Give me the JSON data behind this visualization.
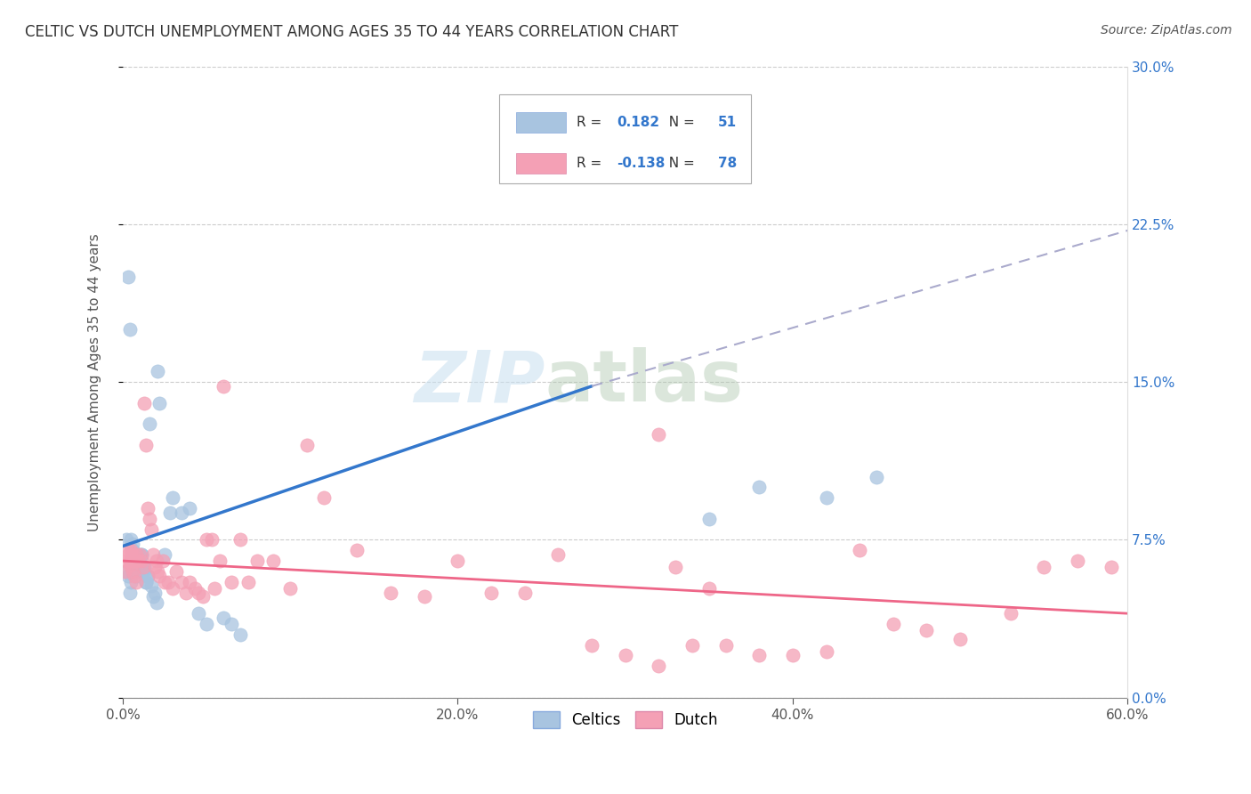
{
  "title": "CELTIC VS DUTCH UNEMPLOYMENT AMONG AGES 35 TO 44 YEARS CORRELATION CHART",
  "source": "Source: ZipAtlas.com",
  "ylabel_label": "Unemployment Among Ages 35 to 44 years",
  "legend_label1": "Celtics",
  "legend_label2": "Dutch",
  "r1": "0.182",
  "n1": "51",
  "r2": "-0.138",
  "n2": "78",
  "celtics_color": "#a8c4e0",
  "dutch_color": "#f4a0b5",
  "celtics_line_color": "#3377cc",
  "dutch_line_color": "#ee6688",
  "dashed_line_color": "#aaaacc",
  "watermark_zip": "ZIP",
  "watermark_atlas": "atlas",
  "xlim": [
    0.0,
    0.6
  ],
  "ylim": [
    0.0,
    0.3
  ],
  "x_tick_vals": [
    0.0,
    0.2,
    0.4,
    0.6
  ],
  "y_tick_vals": [
    0.0,
    0.075,
    0.15,
    0.225,
    0.3
  ],
  "y_tick_labels": [
    "0.0%",
    "7.5%",
    "15.0%",
    "22.5%",
    "30.0%"
  ],
  "x_tick_labels": [
    "0.0%",
    "20.0%",
    "40.0%",
    "60.0%"
  ],
  "blue_line_x": [
    0.0,
    0.28
  ],
  "blue_line_y": [
    0.072,
    0.148
  ],
  "dashed_line_x": [
    0.28,
    0.6
  ],
  "dashed_line_y": [
    0.148,
    0.222
  ],
  "pink_line_x": [
    0.0,
    0.6
  ],
  "pink_line_y": [
    0.065,
    0.04
  ],
  "celtics_x": [
    0.002,
    0.003,
    0.004,
    0.005,
    0.005,
    0.006,
    0.007,
    0.008,
    0.009,
    0.01,
    0.01,
    0.011,
    0.012,
    0.013,
    0.014,
    0.015,
    0.016,
    0.017,
    0.018,
    0.019,
    0.02,
    0.021,
    0.022,
    0.025,
    0.028,
    0.03,
    0.035,
    0.04,
    0.045,
    0.05,
    0.002,
    0.003,
    0.004,
    0.005,
    0.006,
    0.007,
    0.008,
    0.009,
    0.01,
    0.011,
    0.012,
    0.013,
    0.014,
    0.015,
    0.06,
    0.065,
    0.07,
    0.35,
    0.38,
    0.42,
    0.45
  ],
  "celtics_y": [
    0.075,
    0.2,
    0.175,
    0.065,
    0.055,
    0.07,
    0.065,
    0.06,
    0.068,
    0.065,
    0.063,
    0.068,
    0.06,
    0.062,
    0.055,
    0.058,
    0.13,
    0.053,
    0.048,
    0.05,
    0.045,
    0.155,
    0.14,
    0.068,
    0.088,
    0.095,
    0.088,
    0.09,
    0.04,
    0.035,
    0.06,
    0.058,
    0.05,
    0.075,
    0.073,
    0.063,
    0.058,
    0.068,
    0.063,
    0.068,
    0.06,
    0.062,
    0.055,
    0.058,
    0.038,
    0.035,
    0.03,
    0.085,
    0.1,
    0.095,
    0.105
  ],
  "dutch_x": [
    0.001,
    0.002,
    0.003,
    0.004,
    0.005,
    0.006,
    0.007,
    0.008,
    0.009,
    0.01,
    0.011,
    0.012,
    0.013,
    0.014,
    0.015,
    0.016,
    0.017,
    0.018,
    0.019,
    0.02,
    0.021,
    0.022,
    0.024,
    0.025,
    0.027,
    0.03,
    0.032,
    0.035,
    0.038,
    0.04,
    0.043,
    0.045,
    0.048,
    0.05,
    0.053,
    0.055,
    0.058,
    0.06,
    0.065,
    0.07,
    0.075,
    0.08,
    0.09,
    0.1,
    0.11,
    0.12,
    0.14,
    0.16,
    0.18,
    0.2,
    0.22,
    0.24,
    0.26,
    0.28,
    0.3,
    0.32,
    0.34,
    0.36,
    0.38,
    0.4,
    0.42,
    0.44,
    0.46,
    0.48,
    0.5,
    0.53,
    0.55,
    0.57,
    0.59,
    0.33,
    0.35,
    0.003,
    0.004,
    0.005,
    0.006,
    0.007,
    0.008,
    0.32
  ],
  "dutch_y": [
    0.06,
    0.065,
    0.068,
    0.065,
    0.07,
    0.068,
    0.065,
    0.068,
    0.065,
    0.068,
    0.065,
    0.062,
    0.14,
    0.12,
    0.09,
    0.085,
    0.08,
    0.068,
    0.062,
    0.065,
    0.06,
    0.058,
    0.065,
    0.055,
    0.055,
    0.052,
    0.06,
    0.055,
    0.05,
    0.055,
    0.052,
    0.05,
    0.048,
    0.075,
    0.075,
    0.052,
    0.065,
    0.148,
    0.055,
    0.075,
    0.055,
    0.065,
    0.065,
    0.052,
    0.12,
    0.095,
    0.07,
    0.05,
    0.048,
    0.065,
    0.05,
    0.05,
    0.068,
    0.025,
    0.02,
    0.015,
    0.025,
    0.025,
    0.02,
    0.02,
    0.022,
    0.07,
    0.035,
    0.032,
    0.028,
    0.04,
    0.062,
    0.065,
    0.062,
    0.062,
    0.052,
    0.07,
    0.063,
    0.065,
    0.06,
    0.058,
    0.055,
    0.125
  ]
}
